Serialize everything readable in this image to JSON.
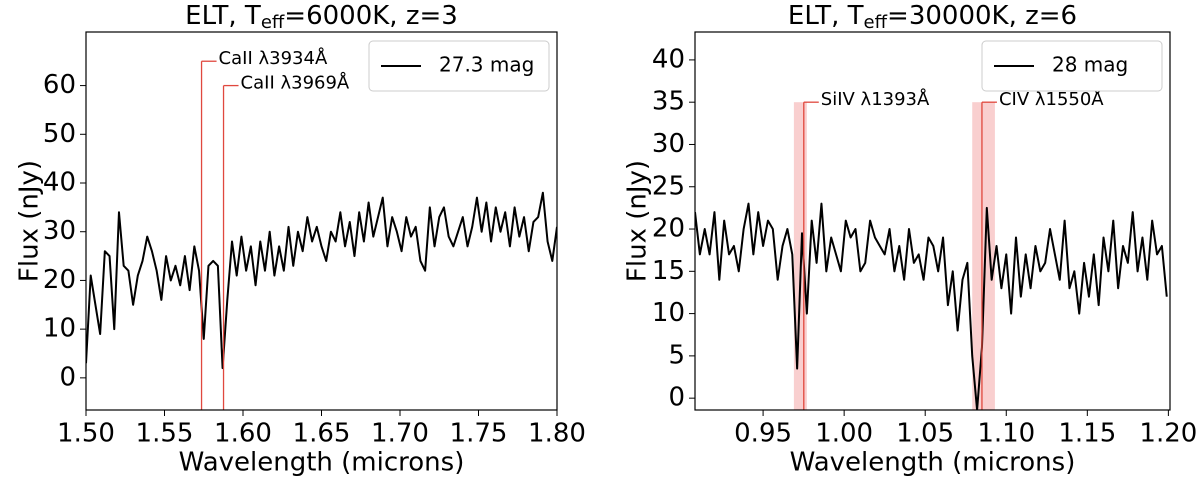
{
  "chart_data": [
    {
      "type": "line",
      "title": {
        "main": "ELT, T",
        "sub": "eff",
        "rest": "=6000K, z=3"
      },
      "x_label": "Wavelength (microns)",
      "y_label": "Flux (nJy)",
      "xlim": [
        1.5,
        1.8
      ],
      "ylim": [
        -6.6,
        71
      ],
      "xticks": [
        {
          "value": 1.5,
          "label": "1.50"
        },
        {
          "value": 1.55,
          "label": "1.55"
        },
        {
          "value": 1.6,
          "label": "1.60"
        },
        {
          "value": 1.65,
          "label": "1.65"
        },
        {
          "value": 1.7,
          "label": "1.70"
        },
        {
          "value": 1.75,
          "label": "1.75"
        },
        {
          "value": 1.8,
          "label": "1.80"
        }
      ],
      "yticks": [
        0,
        10,
        20,
        30,
        40,
        50,
        60
      ],
      "legend": "upper right",
      "annotation_color": "#e0483e",
      "annotations": [
        {
          "label": "CaII λ3934Å",
          "x": 1.5736,
          "y": 65
        },
        {
          "label": "CaII λ3969Å",
          "x": 1.5876,
          "y": 60
        }
      ],
      "series": [
        {
          "name": "27.3 mag",
          "color": "#000000",
          "x": [
            1.5,
            1.503,
            1.506,
            1.509,
            1.512,
            1.515,
            1.518,
            1.521,
            1.524,
            1.527,
            1.53,
            1.533,
            1.536,
            1.539,
            1.542,
            1.545,
            1.548,
            1.551,
            1.554,
            1.557,
            1.56,
            1.563,
            1.566,
            1.569,
            1.572,
            1.575,
            1.578,
            1.581,
            1.584,
            1.587,
            1.59,
            1.593,
            1.596,
            1.599,
            1.602,
            1.605,
            1.608,
            1.611,
            1.614,
            1.617,
            1.62,
            1.623,
            1.626,
            1.629,
            1.632,
            1.635,
            1.638,
            1.641,
            1.644,
            1.647,
            1.65,
            1.653,
            1.656,
            1.659,
            1.662,
            1.665,
            1.668,
            1.671,
            1.674,
            1.677,
            1.68,
            1.683,
            1.686,
            1.689,
            1.692,
            1.695,
            1.698,
            1.701,
            1.704,
            1.707,
            1.71,
            1.713,
            1.716,
            1.719,
            1.722,
            1.725,
            1.728,
            1.731,
            1.734,
            1.737,
            1.74,
            1.743,
            1.746,
            1.749,
            1.752,
            1.755,
            1.758,
            1.761,
            1.764,
            1.767,
            1.77,
            1.773,
            1.776,
            1.779,
            1.782,
            1.785,
            1.788,
            1.791,
            1.794,
            1.797,
            1.8
          ],
          "values": [
            3,
            21,
            15,
            9,
            26,
            25,
            10,
            34,
            23,
            22,
            15,
            21,
            24,
            29,
            26,
            22,
            16,
            25,
            20,
            23,
            19,
            25,
            18,
            27,
            22,
            8,
            23,
            24,
            23,
            2,
            16,
            28,
            21,
            29,
            22,
            27,
            19,
            28,
            22,
            30,
            21,
            27,
            22,
            31,
            23,
            30,
            26,
            33,
            28,
            31,
            27,
            24,
            30,
            28,
            34,
            27,
            32,
            25,
            34,
            28,
            36,
            29,
            33,
            37,
            27,
            33,
            30,
            26,
            33,
            29,
            31,
            24,
            22,
            35,
            27,
            33,
            35,
            29,
            27,
            30,
            33,
            27,
            31,
            37,
            30,
            36,
            28,
            35,
            30,
            34,
            27,
            35,
            29,
            33,
            26,
            32,
            33,
            38,
            28,
            24,
            31
          ]
        }
      ]
    },
    {
      "type": "line",
      "title": {
        "main": "ELT, T",
        "sub": "eff",
        "rest": "=30000K, z=6"
      },
      "x_label": "Wavelength (microns)",
      "y_label": "Flux (nJy)",
      "xlim": [
        0.908,
        1.201
      ],
      "ylim": [
        -1.4,
        43.3
      ],
      "xticks": [
        {
          "value": 0.95,
          "label": "0.95"
        },
        {
          "value": 1.0,
          "label": "1.00"
        },
        {
          "value": 1.05,
          "label": "1.05"
        },
        {
          "value": 1.1,
          "label": "1.10"
        },
        {
          "value": 1.15,
          "label": "1.15"
        },
        {
          "value": 1.2,
          "label": "1.20"
        }
      ],
      "yticks": [
        0,
        5,
        10,
        15,
        20,
        25,
        30,
        35,
        40
      ],
      "legend": "upper right",
      "annotation_color": "#e0483e",
      "band_color": "#f9cfcf",
      "annotations": [
        {
          "label": "SiIV λ1393Å",
          "x": 0.9751,
          "y": 35,
          "band": [
            0.969,
            0.977
          ]
        },
        {
          "label": "CIV λ1550Å",
          "x": 1.085,
          "y": 35,
          "band": [
            1.079,
            1.093
          ]
        }
      ],
      "series": [
        {
          "name": "28 mag",
          "color": "#000000",
          "x": [
            0.908,
            0.911,
            0.914,
            0.917,
            0.92,
            0.923,
            0.926,
            0.929,
            0.932,
            0.935,
            0.938,
            0.941,
            0.944,
            0.947,
            0.95,
            0.953,
            0.956,
            0.959,
            0.962,
            0.965,
            0.968,
            0.971,
            0.974,
            0.977,
            0.98,
            0.983,
            0.986,
            0.989,
            0.992,
            0.995,
            0.998,
            1.001,
            1.004,
            1.007,
            1.01,
            1.013,
            1.016,
            1.019,
            1.022,
            1.025,
            1.028,
            1.031,
            1.034,
            1.037,
            1.04,
            1.043,
            1.046,
            1.049,
            1.052,
            1.055,
            1.058,
            1.061,
            1.064,
            1.067,
            1.07,
            1.073,
            1.076,
            1.079,
            1.082,
            1.085,
            1.088,
            1.091,
            1.094,
            1.097,
            1.1,
            1.103,
            1.106,
            1.109,
            1.112,
            1.115,
            1.118,
            1.121,
            1.124,
            1.127,
            1.13,
            1.133,
            1.136,
            1.139,
            1.142,
            1.145,
            1.148,
            1.151,
            1.154,
            1.157,
            1.16,
            1.163,
            1.166,
            1.169,
            1.172,
            1.175,
            1.178,
            1.181,
            1.184,
            1.187,
            1.19,
            1.193,
            1.196,
            1.199
          ],
          "values": [
            22,
            17,
            20,
            17,
            22,
            14,
            21,
            17,
            18,
            15,
            20,
            23,
            17,
            22,
            18,
            21,
            20,
            14,
            18,
            20,
            17,
            3.5,
            19.5,
            10,
            21,
            16,
            23,
            15,
            19,
            17,
            15,
            21,
            19,
            20,
            15,
            16,
            21,
            19,
            18,
            17,
            20,
            15,
            18,
            14,
            20,
            16,
            17,
            14,
            19,
            18,
            15,
            19,
            11,
            15,
            8,
            14,
            16,
            5,
            -1.4,
            6,
            22.5,
            14,
            18,
            13,
            17,
            10,
            19,
            12,
            17,
            13,
            18,
            15,
            16,
            20,
            17,
            14,
            21,
            13,
            15,
            10,
            16,
            12,
            17,
            11,
            19,
            15,
            21,
            13,
            18,
            16,
            22,
            15,
            19,
            14,
            21,
            17,
            18,
            12
          ]
        }
      ]
    }
  ]
}
